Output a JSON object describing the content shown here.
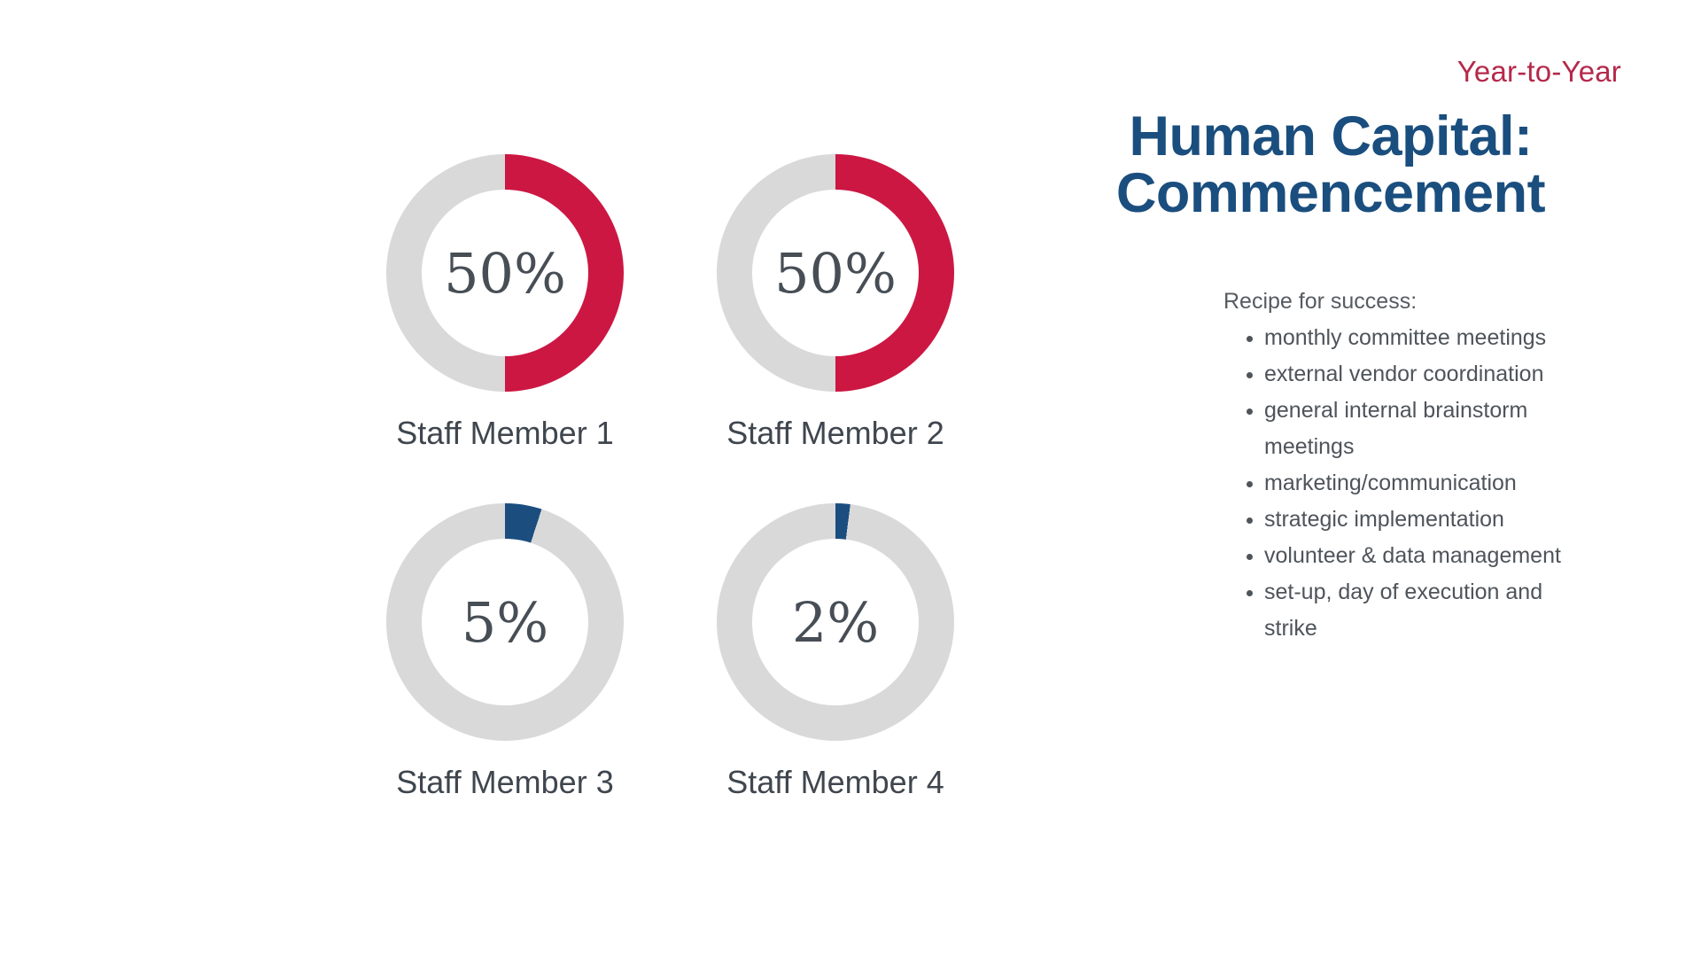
{
  "slide": {
    "eyebrow": "Year-to-Year",
    "title_line1": "Human Capital:",
    "title_line2": "Commencement"
  },
  "recipe": {
    "heading": "Recipe for success:",
    "items": [
      "monthly committee meetings",
      "external vendor coordination",
      "general internal brainstorm meetings",
      "marketing/communication",
      "strategic implementation",
      "volunteer & data management",
      "set-up, day of execution and strike"
    ]
  },
  "chart_data": [
    {
      "type": "pie",
      "variant": "donut",
      "label": "Staff Member 1",
      "display_value": "50%",
      "value_pct": 50,
      "fill_color": "#CC1743",
      "track_color": "#D9D9D9",
      "start_angle_deg": 0,
      "direction": "clockwise"
    },
    {
      "type": "pie",
      "variant": "donut",
      "label": "Staff Member 2",
      "display_value": "50%",
      "value_pct": 50,
      "fill_color": "#CC1743",
      "track_color": "#D9D9D9",
      "start_angle_deg": 0,
      "direction": "clockwise"
    },
    {
      "type": "pie",
      "variant": "donut",
      "label": "Staff Member 3",
      "display_value": "5%",
      "value_pct": 5,
      "fill_color": "#1B4E7F",
      "track_color": "#D9D9D9",
      "start_angle_deg": 0,
      "direction": "clockwise"
    },
    {
      "type": "pie",
      "variant": "donut",
      "label": "Staff Member 4",
      "display_value": "2%",
      "value_pct": 2,
      "fill_color": "#1B4E7F",
      "track_color": "#D9D9D9",
      "start_angle_deg": 0,
      "direction": "clockwise"
    }
  ],
  "colors": {
    "accent_red": "#CC1743",
    "accent_blue": "#1B4E7F",
    "title_blue": "#1A4E7E",
    "eyebrow_red": "#B5294B",
    "track_gray": "#D9D9D9",
    "percent_text": "#474E55",
    "label_text": "#3F464E",
    "body_text": "#4E545A"
  }
}
